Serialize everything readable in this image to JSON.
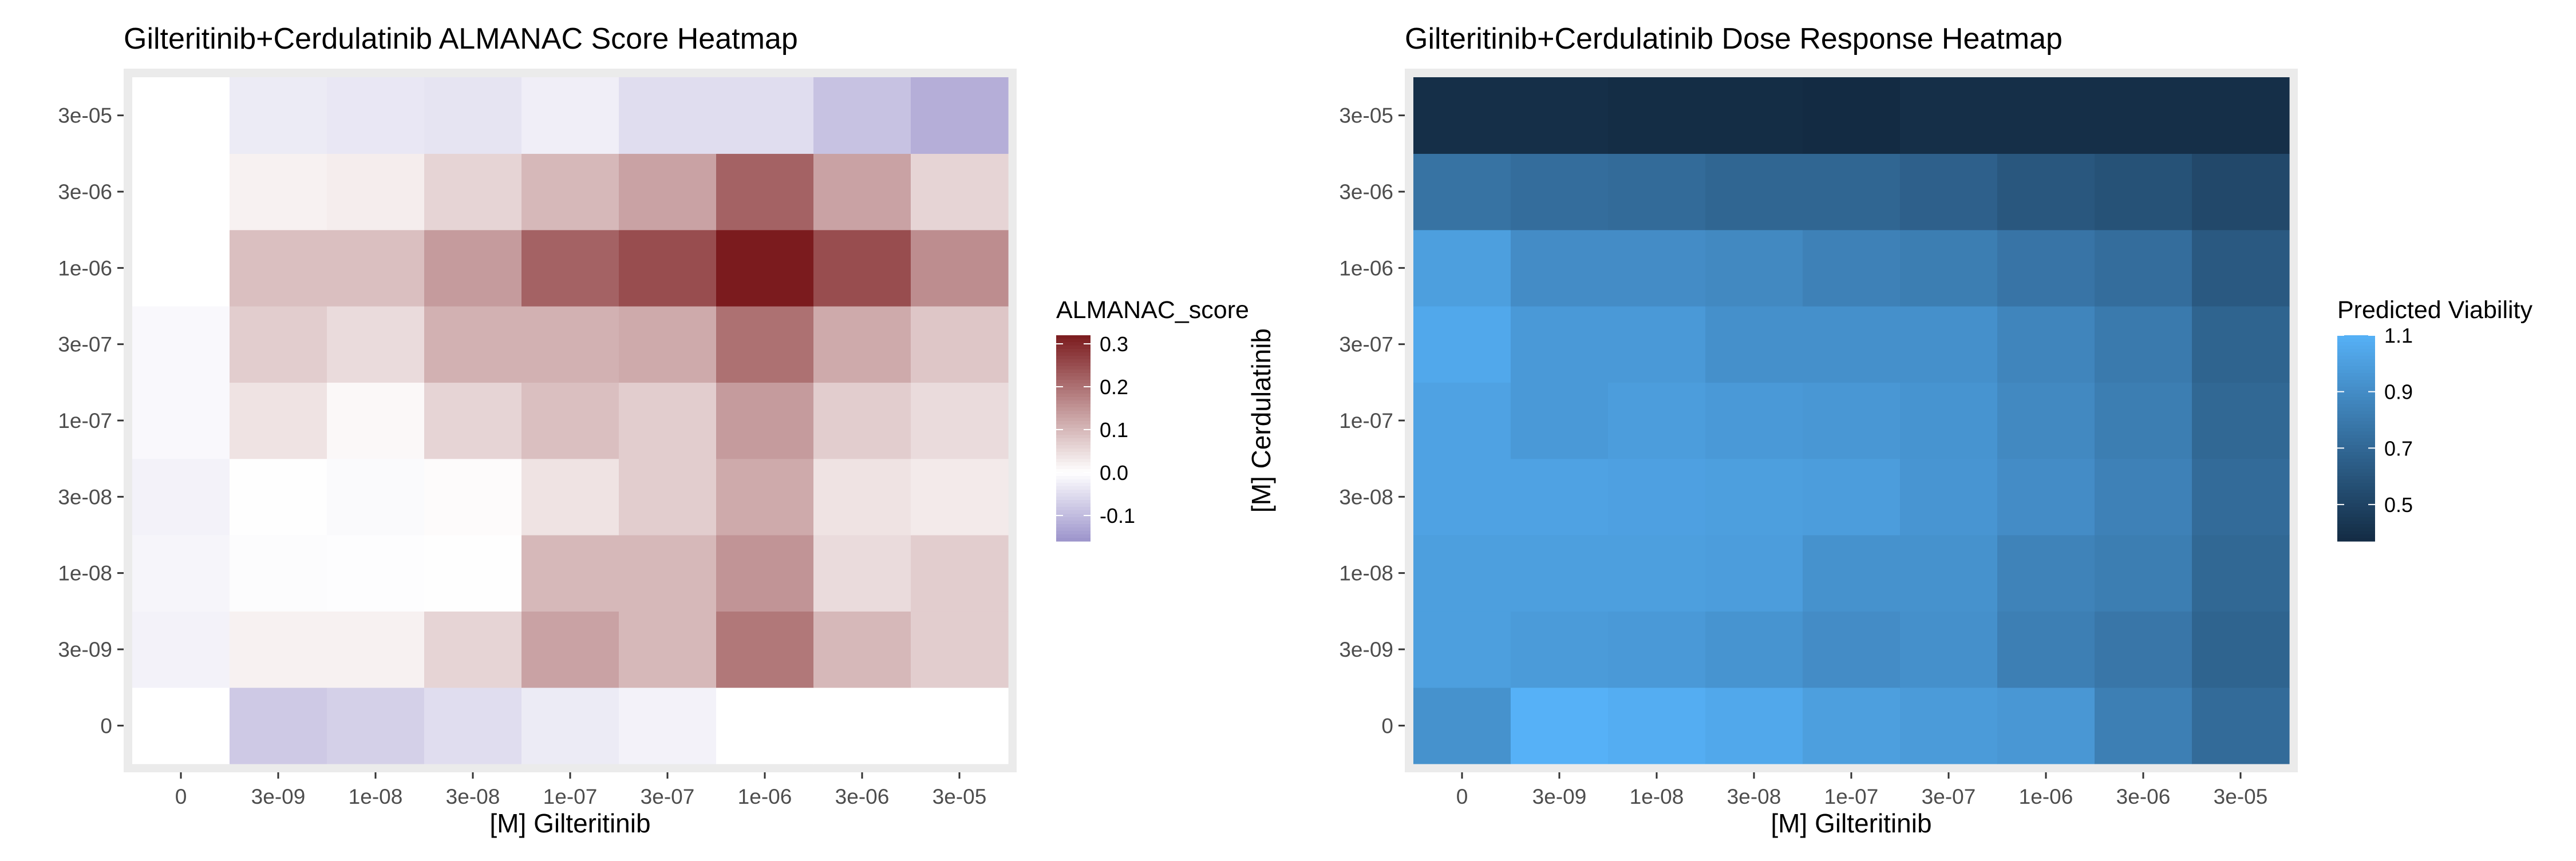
{
  "chart_data": [
    {
      "type": "heatmap",
      "title": "Gilteritinib+Cerdulatinib ALMANAC Score Heatmap",
      "xlabel": "[M] Gilteritinib",
      "ylabel": "[M] Cerdulatinib",
      "x": [
        "0",
        "3e-09",
        "1e-08",
        "3e-08",
        "1e-07",
        "3e-07",
        "1e-06",
        "3e-06",
        "3e-05"
      ],
      "y": [
        "0",
        "3e-09",
        "1e-08",
        "3e-08",
        "1e-07",
        "3e-07",
        "1e-06",
        "3e-06",
        "3e-05"
      ],
      "z": [
        [
          0.0,
          -0.08,
          -0.07,
          -0.05,
          -0.03,
          -0.02,
          0.0,
          0.0,
          0.0
        ],
        [
          -0.02,
          0.02,
          0.02,
          0.06,
          0.13,
          0.1,
          0.19,
          0.1,
          0.07
        ],
        [
          -0.015,
          -0.005,
          -0.003,
          -0.002,
          0.1,
          0.1,
          0.15,
          0.05,
          0.07
        ],
        [
          -0.02,
          -0.002,
          -0.008,
          0.005,
          0.04,
          0.07,
          0.12,
          0.04,
          0.03
        ],
        [
          -0.01,
          0.04,
          0.01,
          0.06,
          0.09,
          0.07,
          0.14,
          0.07,
          0.05
        ],
        [
          -0.01,
          0.07,
          0.05,
          0.11,
          0.11,
          0.12,
          0.2,
          0.12,
          0.08
        ],
        [
          0.0,
          0.09,
          0.09,
          0.14,
          0.22,
          0.25,
          0.32,
          0.25,
          0.16
        ],
        [
          0.0,
          0.02,
          0.025,
          0.06,
          0.1,
          0.13,
          0.22,
          0.13,
          0.06
        ],
        [
          0.0,
          -0.03,
          -0.035,
          -0.04,
          -0.025,
          -0.05,
          -0.05,
          -0.09,
          -0.12
        ]
      ],
      "legend": {
        "title": "ALMANAC_score",
        "ticks": [
          "0.3",
          "0.2",
          "0.1",
          "0.0",
          "-0.1"
        ],
        "tick_values": [
          0.3,
          0.2,
          0.1,
          0.0,
          -0.1
        ],
        "range": [
          -0.16,
          0.32
        ],
        "position": "right",
        "colors": {
          "low": "#9c93cb",
          "mid": "#ffffff",
          "high": "#7b1b1e"
        }
      },
      "grid": true
    },
    {
      "type": "heatmap",
      "title": "Gilteritinib+Cerdulatinib Dose Response Heatmap",
      "xlabel": "[M] Gilteritinib",
      "ylabel": "[M] Cerdulatinib",
      "x": [
        "0",
        "3e-09",
        "1e-08",
        "3e-08",
        "1e-07",
        "3e-07",
        "1e-06",
        "3e-06",
        "3e-05"
      ],
      "y": [
        "0",
        "3e-09",
        "1e-08",
        "3e-08",
        "1e-07",
        "3e-07",
        "1e-06",
        "3e-06",
        "3e-05"
      ],
      "z": [
        [
          0.93,
          1.1,
          1.08,
          1.05,
          1.0,
          0.98,
          0.96,
          0.83,
          0.72
        ],
        [
          1.0,
          0.98,
          0.97,
          0.94,
          0.9,
          0.92,
          0.83,
          0.78,
          0.68
        ],
        [
          1.0,
          1.0,
          1.0,
          0.99,
          0.93,
          0.93,
          0.85,
          0.82,
          0.7
        ],
        [
          1.02,
          1.02,
          1.01,
          1.0,
          0.99,
          0.95,
          0.9,
          0.84,
          0.72
        ],
        [
          1.02,
          0.97,
          0.99,
          0.97,
          0.96,
          0.94,
          0.88,
          0.82,
          0.7
        ],
        [
          1.05,
          0.97,
          0.97,
          0.92,
          0.92,
          0.92,
          0.86,
          0.8,
          0.68
        ],
        [
          1.0,
          0.9,
          0.9,
          0.88,
          0.84,
          0.82,
          0.77,
          0.73,
          0.62
        ],
        [
          0.76,
          0.73,
          0.72,
          0.69,
          0.69,
          0.66,
          0.61,
          0.58,
          0.53
        ],
        [
          0.39,
          0.39,
          0.38,
          0.38,
          0.37,
          0.39,
          0.39,
          0.39,
          0.39
        ]
      ],
      "legend": {
        "title": "Predicted Viability",
        "ticks": [
          "1.1",
          "0.9",
          "0.7",
          "0.5"
        ],
        "tick_values": [
          1.1,
          0.9,
          0.7,
          0.5
        ],
        "range": [
          0.37,
          1.1
        ],
        "position": "right",
        "colors": {
          "low": "#132b43",
          "high": "#56b1f7"
        }
      },
      "grid": true
    }
  ],
  "colors": {
    "panel_bg": "#ebebeb",
    "axis_text": "#4d4d4d",
    "tick": "#333333",
    "text": "#000000"
  }
}
